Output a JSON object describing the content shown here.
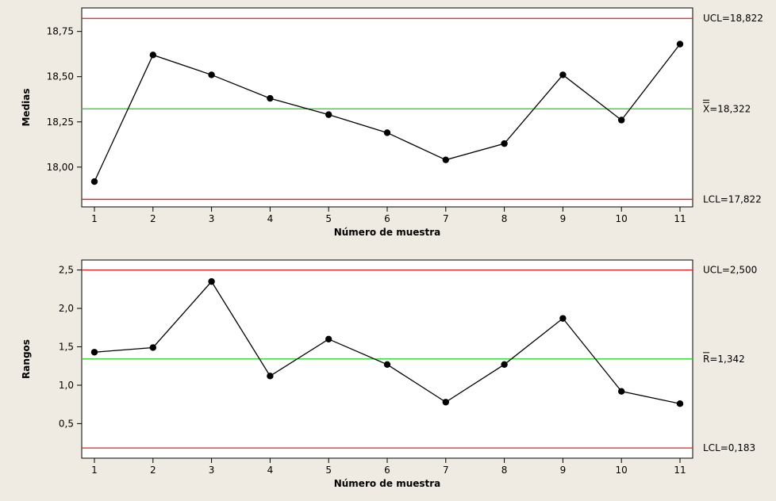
{
  "chart_data": [
    {
      "type": "line",
      "subtype": "control-chart-xbar",
      "xlabel": "Número de muestra",
      "ylabel": "Medias",
      "x": [
        1,
        2,
        3,
        4,
        5,
        6,
        7,
        8,
        9,
        10,
        11
      ],
      "xtick_labels": [
        "1",
        "2",
        "3",
        "4",
        "5",
        "6",
        "7",
        "8",
        "9",
        "10",
        "11"
      ],
      "values": [
        17.92,
        18.62,
        18.51,
        18.38,
        18.29,
        18.19,
        18.04,
        18.13,
        18.51,
        18.26,
        18.68
      ],
      "ylim": [
        17.78,
        18.88
      ],
      "yticks": [
        18.0,
        18.25,
        18.5,
        18.75
      ],
      "ytick_labels": [
        "18,00",
        "18,25",
        "18,50",
        "18,75"
      ],
      "limits": {
        "ucl": {
          "value": 18.822,
          "label": "UCL=18,822",
          "color": "#e02020"
        },
        "center": {
          "value": 18.322,
          "label": "X=18,322",
          "color": "#22dd22"
        },
        "lcl": {
          "value": 17.822,
          "label": "LCL=17,822",
          "color": "#e02020"
        }
      },
      "grid": false,
      "series_color": "#000000"
    },
    {
      "type": "line",
      "subtype": "control-chart-range",
      "xlabel": "Número de muestra",
      "ylabel": "Rangos",
      "x": [
        1,
        2,
        3,
        4,
        5,
        6,
        7,
        8,
        9,
        10,
        11
      ],
      "xtick_labels": [
        "1",
        "2",
        "3",
        "4",
        "5",
        "6",
        "7",
        "8",
        "9",
        "10",
        "11"
      ],
      "values": [
        1.43,
        1.49,
        2.35,
        1.12,
        1.6,
        1.27,
        0.78,
        1.27,
        1.87,
        0.92,
        0.76
      ],
      "ylim": [
        0.05,
        2.63
      ],
      "yticks": [
        0.5,
        1.0,
        1.5,
        2.0,
        2.5
      ],
      "ytick_labels": [
        "0,5",
        "1,0",
        "1,5",
        "2,0",
        "2,5"
      ],
      "limits": {
        "ucl": {
          "value": 2.5,
          "label": "UCL=2,500",
          "color": "#e02020"
        },
        "center": {
          "value": 1.342,
          "label": "R=1,342",
          "color": "#22dd22"
        },
        "lcl": {
          "value": 0.183,
          "label": "LCL=0,183",
          "color": "#e02020"
        }
      },
      "grid": false,
      "series_color": "#000000"
    }
  ]
}
